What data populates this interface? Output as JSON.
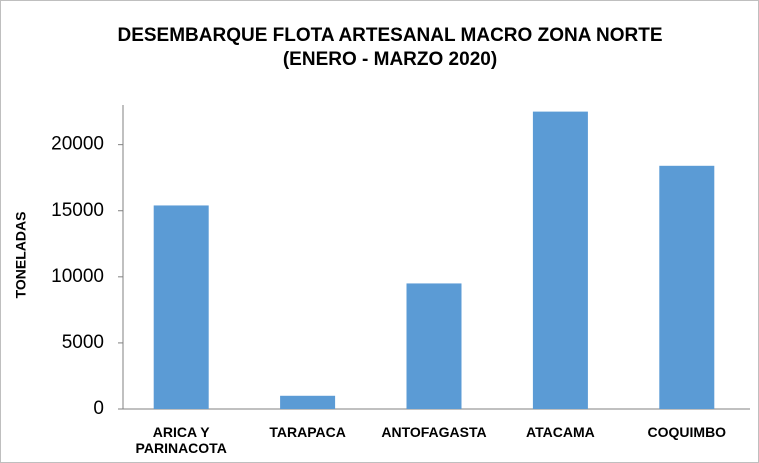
{
  "chart_data": {
    "type": "bar",
    "title": "DESEMBARQUE FLOTA ARTESANAL MACRO ZONA NORTE (ENERO - MARZO 2020)",
    "y_label": "TONELADAS",
    "categories": [
      "ARICA Y PARINACOTA",
      "TARAPACA",
      "ANTOFAGASTA",
      "ATACAMA",
      "COQUIMBO"
    ],
    "values": [
      15400,
      1000,
      9500,
      22500,
      18400
    ],
    "color": "#5b9bd5",
    "ylim": [
      0,
      23000
    ],
    "yticks": [
      0,
      5000,
      10000,
      15000,
      20000
    ],
    "grid": false
  }
}
